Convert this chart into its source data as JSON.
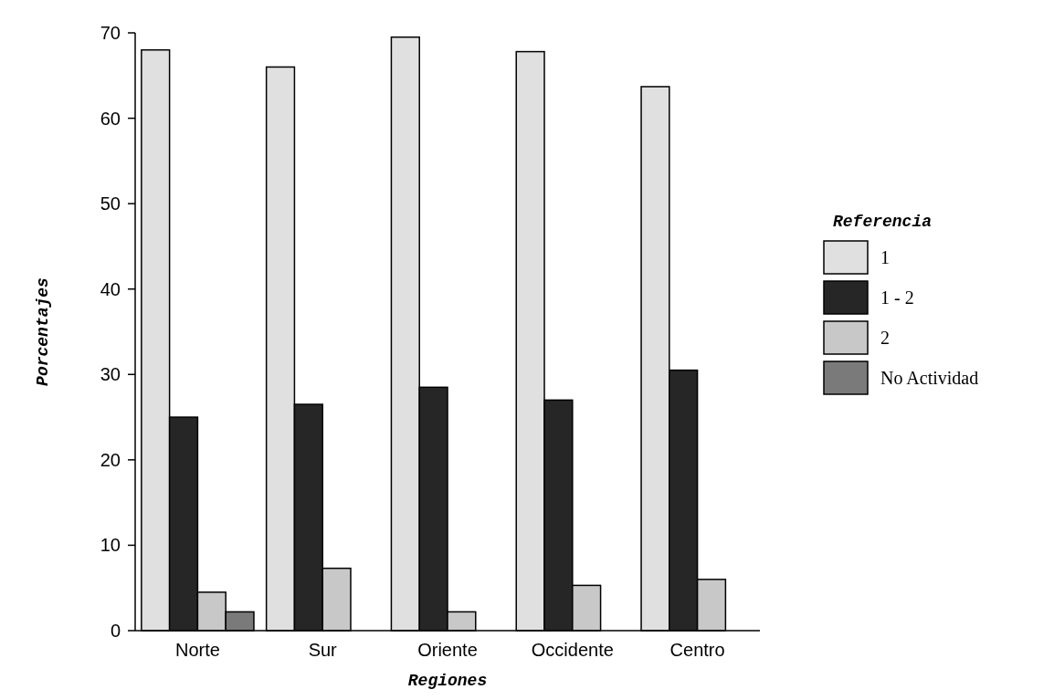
{
  "chart_data": {
    "type": "bar",
    "xlabel": "Regiones",
    "ylabel": "Porcentajes",
    "legend_title": "Referencia",
    "legend": "right",
    "categories": [
      "Norte",
      "Sur",
      "Oriente",
      "Occidente",
      "Centro"
    ],
    "series": [
      {
        "name": "1",
        "color": "#e0e0e0",
        "values": [
          68,
          66,
          69.5,
          67.8,
          63.7
        ]
      },
      {
        "name": "1 - 2",
        "color": "#262626",
        "values": [
          25,
          26.5,
          28.5,
          27,
          30.5
        ]
      },
      {
        "name": "2",
        "color": "#c8c8c8",
        "values": [
          4.5,
          7.3,
          2.2,
          5.3,
          6
        ]
      },
      {
        "name": "No Actividad",
        "color": "#7a7a7a",
        "values": [
          2.2,
          null,
          null,
          null,
          null
        ]
      }
    ],
    "ylim": [
      0,
      70
    ],
    "yticks": [
      0,
      10,
      20,
      30,
      40,
      50,
      60,
      70
    ]
  }
}
